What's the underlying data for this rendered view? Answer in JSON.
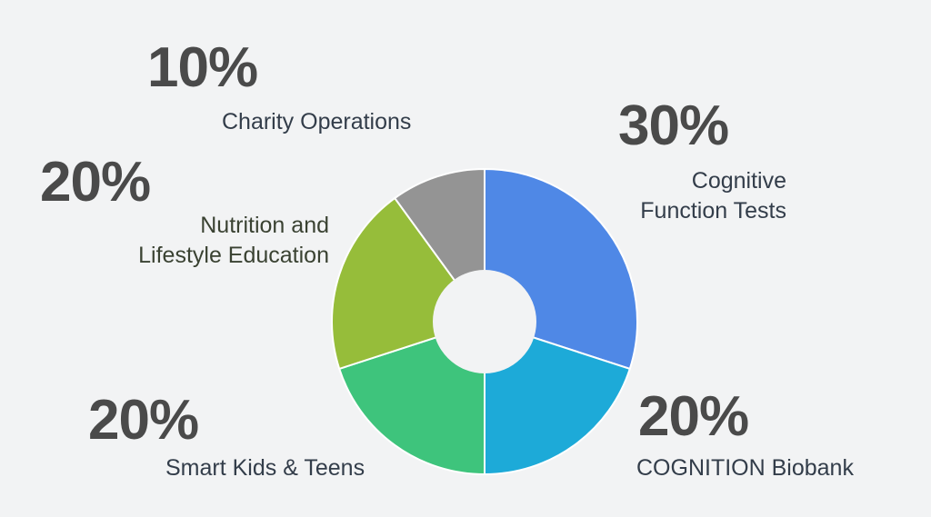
{
  "chart_data": {
    "type": "pie",
    "donut": true,
    "slices": [
      {
        "label_lines": [
          "Cognitive",
          "Function Tests"
        ],
        "percent_text": "30%",
        "value": 30,
        "color": "#4f88e6"
      },
      {
        "label_lines": [
          "COGNITION Biobank"
        ],
        "percent_text": "20%",
        "value": 20,
        "color": "#1daad8"
      },
      {
        "label_lines": [
          "Smart Kids & Teens"
        ],
        "percent_text": "20%",
        "value": 20,
        "color": "#3ec47c"
      },
      {
        "label_lines": [
          "Nutrition and",
          "Lifestyle Education"
        ],
        "percent_text": "20%",
        "value": 20,
        "color": "#96bd3a"
      },
      {
        "label_lines": [
          "Charity Operations"
        ],
        "percent_text": "10%",
        "value": 10,
        "color": "#949494"
      }
    ]
  }
}
